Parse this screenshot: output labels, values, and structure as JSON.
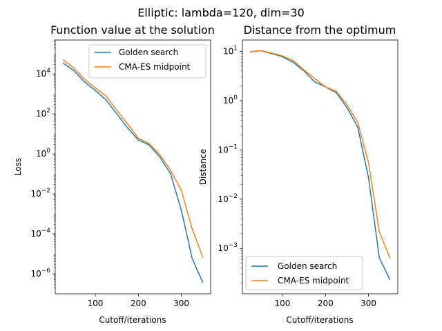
{
  "suptitle": "Elliptic: lambda=120, dim=30",
  "chart_data": [
    {
      "type": "line",
      "title": "Function value at the solution",
      "xlabel": "Cutoff/iterations",
      "ylabel": "Loss",
      "yscale": "log",
      "xlim": [
        7,
        368
      ],
      "ylim": [
        1e-07,
        500000.0
      ],
      "xticks": [
        100,
        200,
        300
      ],
      "yticks": [
        {
          "value": 1e-06,
          "mantissa": "10",
          "exp": "−6"
        },
        {
          "value": 0.0001,
          "mantissa": "10",
          "exp": "−4"
        },
        {
          "value": 0.01,
          "mantissa": "10",
          "exp": "−2"
        },
        {
          "value": 1.0,
          "mantissa": "10",
          "exp": "0"
        },
        {
          "value": 100.0,
          "mantissa": "10",
          "exp": "2"
        },
        {
          "value": 10000.0,
          "mantissa": "10",
          "exp": "4"
        }
      ],
      "legend": {
        "location": "upper right",
        "entries": [
          "Golden search",
          "CMA-ES midpoint"
        ]
      },
      "series": [
        {
          "name": "Golden search",
          "color": "#1f77b4",
          "x": [
            25,
            50,
            75,
            100,
            125,
            150,
            175,
            200,
            225,
            250,
            275,
            300,
            325,
            350
          ],
          "y": [
            35000,
            15000,
            4000,
            1500,
            500,
            100,
            20,
            5,
            2.8,
            0.7,
            0.1,
            0.0015,
            6e-06,
            3.5e-07
          ]
        },
        {
          "name": "CMA-ES midpoint",
          "color": "#ff7f0e",
          "x": [
            25,
            50,
            75,
            100,
            125,
            150,
            175,
            200,
            225,
            250,
            275,
            300,
            325,
            350
          ],
          "y": [
            52000,
            20000,
            5500,
            2000,
            800,
            150,
            32,
            6,
            3.3,
            0.9,
            0.15,
            0.015,
            0.00018,
            6.5e-06
          ]
        }
      ]
    },
    {
      "type": "line",
      "title": "Distance from the optimum",
      "xlabel": "Cutoff/iterations",
      "ylabel": "Distance",
      "yscale": "log",
      "xlim": [
        7,
        368
      ],
      "ylim": [
        0.00012,
        17
      ],
      "xticks": [
        100,
        200,
        300
      ],
      "yticks": [
        {
          "value": 0.001,
          "mantissa": "10",
          "exp": "−3"
        },
        {
          "value": 0.01,
          "mantissa": "10",
          "exp": "−2"
        },
        {
          "value": 0.1,
          "mantissa": "10",
          "exp": "−1"
        },
        {
          "value": 1,
          "mantissa": "10",
          "exp": "0"
        },
        {
          "value": 10,
          "mantissa": "10",
          "exp": "1"
        }
      ],
      "legend": {
        "location": "lower left",
        "entries": [
          "Golden search",
          "CMA-ES midpoint"
        ]
      },
      "series": [
        {
          "name": "Golden search",
          "color": "#1f77b4",
          "x": [
            25,
            50,
            75,
            100,
            125,
            150,
            175,
            200,
            225,
            250,
            275,
            300,
            325,
            350
          ],
          "y": [
            9.7,
            10.3,
            9.0,
            7.8,
            6.0,
            4.0,
            2.4,
            1.9,
            1.45,
            0.72,
            0.29,
            0.027,
            0.00065,
            0.00023
          ]
        },
        {
          "name": "CMA-ES midpoint",
          "color": "#ff7f0e",
          "x": [
            25,
            50,
            75,
            100,
            125,
            150,
            175,
            200,
            225,
            250,
            275,
            300,
            325,
            350
          ],
          "y": [
            9.8,
            10.4,
            9.2,
            8.1,
            6.5,
            4.2,
            2.8,
            1.9,
            1.55,
            0.82,
            0.36,
            0.055,
            0.0022,
            0.00063
          ]
        }
      ]
    }
  ]
}
